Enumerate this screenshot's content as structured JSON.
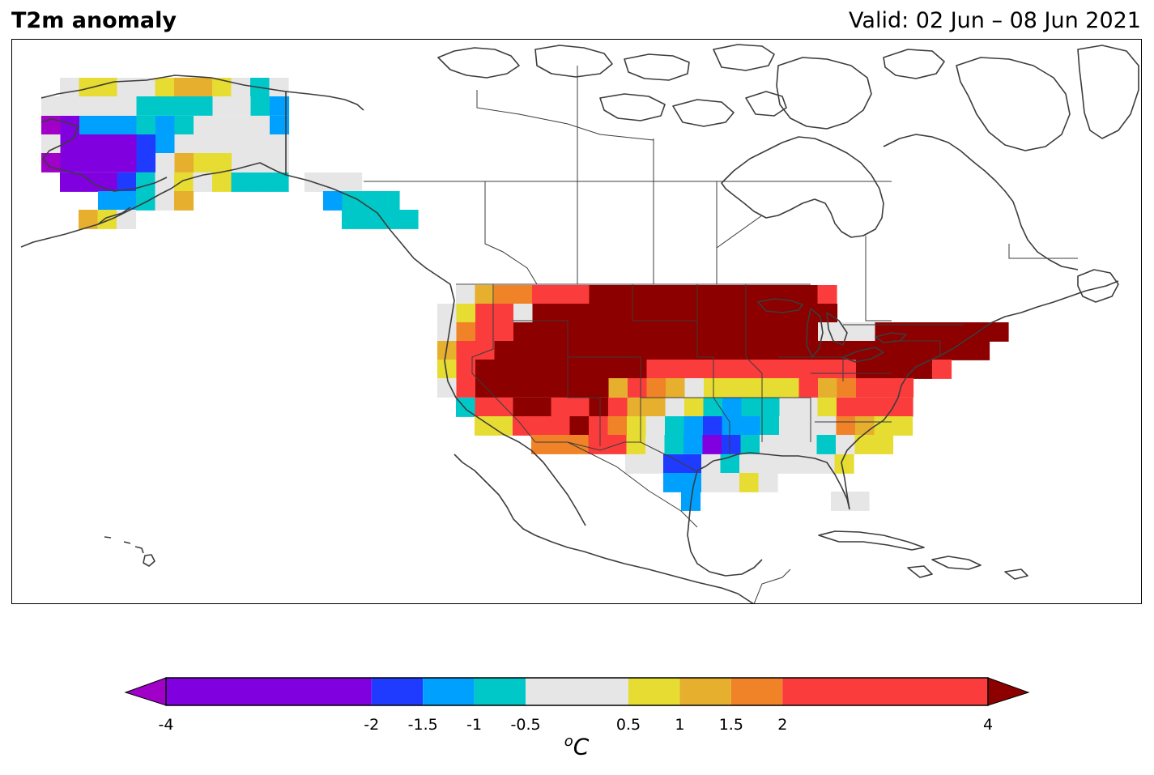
{
  "header": {
    "title": "T2m anomaly",
    "valid": "Valid: 02 Jun – 08 Jun 2021"
  },
  "colorbar": {
    "unit_prefix": "o",
    "unit": "C",
    "ticks": [
      "-4",
      "-2",
      "-1.5",
      "-1",
      "-0.5",
      "0.5",
      "1",
      "1.5",
      "2",
      "4"
    ],
    "bins": [
      {
        "from": -4,
        "to": -2,
        "color": "#8000e0"
      },
      {
        "from": -2,
        "to": -1.5,
        "color": "#1f3bff"
      },
      {
        "from": -1.5,
        "to": -1,
        "color": "#00a0ff"
      },
      {
        "from": -1,
        "to": -0.5,
        "color": "#00c8c8"
      },
      {
        "from": -0.5,
        "to": 0.5,
        "color": "#e6e6e6"
      },
      {
        "from": 0.5,
        "to": 1,
        "color": "#e6dc32"
      },
      {
        "from": 1,
        "to": 1.5,
        "color": "#e6af2d"
      },
      {
        "from": 1.5,
        "to": 2,
        "color": "#f08228"
      },
      {
        "from": 2,
        "to": 4,
        "color": "#fa3c3c"
      }
    ],
    "below_color": "#a000c8",
    "above_color": "#8c0000"
  },
  "colors": {
    "vdeep_cold": "#a000c8",
    "deep_cold": "#8000e0",
    "blue": "#1f3bff",
    "light_blue": "#00a0ff",
    "cyan": "#00c8c8",
    "neutral": "#e6e6e6",
    "yellow": "#e6dc32",
    "gold": "#e6af2d",
    "orange": "#f08228",
    "red": "#fa3c3c",
    "dark_red": "#8c0000",
    "coast": "#3c3c3c"
  }
}
